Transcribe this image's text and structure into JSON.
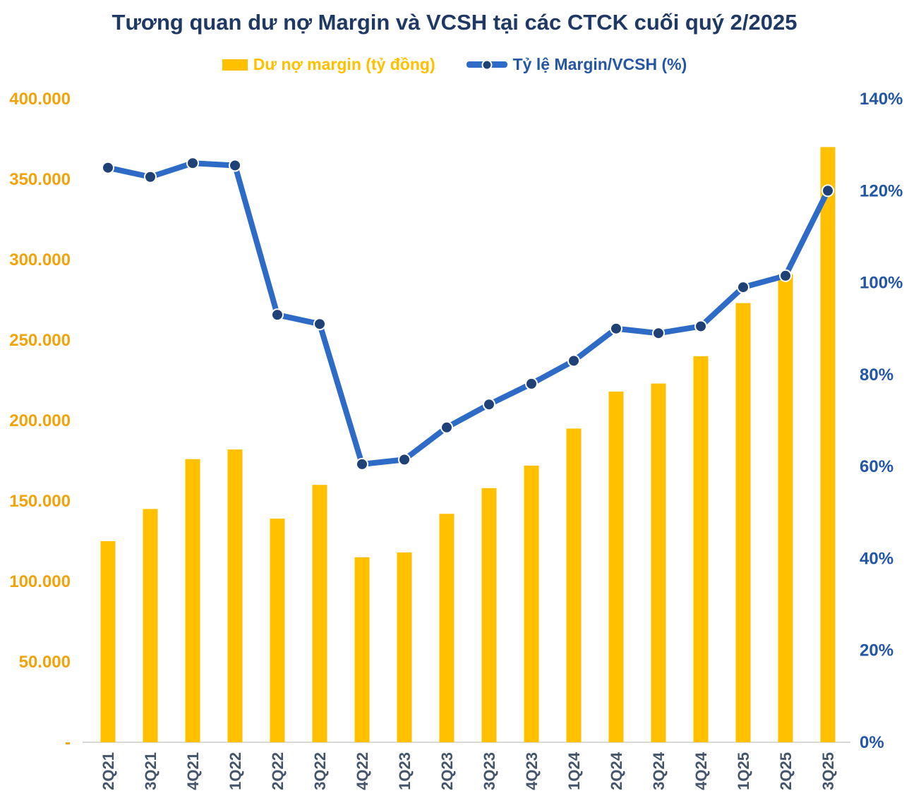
{
  "title": "Tương quan dư nợ Margin và VCSH tại các CTCK cuối quý 2/2025",
  "legend": {
    "bar_label": "Dư nợ margin (tỷ đồng)",
    "line_label": "Tỷ lệ Margin/VCSH (%)"
  },
  "colors": {
    "bar_fill": "#FFC000",
    "line_stroke": "#2E6BC6",
    "marker_fill": "#1F4176",
    "marker_ring": "#FFFFFF",
    "title_text": "#1F3864",
    "left_axis_text": "#F0A30A",
    "right_axis_text": "#2356A8",
    "x_axis_text": "#44546A",
    "axis_line": "#D9D9D9",
    "background": "#FFFFFF"
  },
  "chart_data": {
    "type": "combo",
    "title": "Tương quan dư nợ Margin và VCSH tại các CTCK cuối quý 2/2025",
    "grid": "off",
    "legend_position": "top",
    "categories": [
      "2Q21",
      "3Q21",
      "4Q21",
      "1Q22",
      "2Q22",
      "3Q22",
      "4Q22",
      "1Q23",
      "2Q23",
      "3Q23",
      "4Q23",
      "1Q24",
      "2Q24",
      "3Q24",
      "4Q24",
      "1Q25",
      "2Q25",
      "3Q25"
    ],
    "series": [
      {
        "name": "Dư nợ margin (tỷ đồng)",
        "type": "bar",
        "axis": "left",
        "values": [
          125000,
          145000,
          176000,
          182000,
          139000,
          160000,
          115000,
          118000,
          142000,
          158000,
          172000,
          195000,
          218000,
          223000,
          240000,
          273000,
          291000,
          370000
        ]
      },
      {
        "name": "Tỷ lệ Margin/VCSH (%)",
        "type": "line",
        "axis": "right",
        "values": [
          125,
          123,
          126,
          125.5,
          93,
          91,
          60.5,
          61.5,
          68.5,
          73.5,
          78,
          83,
          90,
          89,
          90.5,
          99,
          101.5,
          120
        ]
      }
    ],
    "left_axis": {
      "min": 0,
      "max": 400000,
      "tick_step": 50000,
      "tick_labels": [
        "400.000",
        "350.000",
        "300.000",
        "250.000",
        "200.000",
        "150.000",
        "100.000",
        "50.000",
        "-"
      ]
    },
    "right_axis": {
      "min": 0,
      "max": 140,
      "tick_step": 20,
      "tick_labels": [
        "140%",
        "120%",
        "100%",
        "80%",
        "60%",
        "40%",
        "20%",
        "0%"
      ]
    }
  }
}
